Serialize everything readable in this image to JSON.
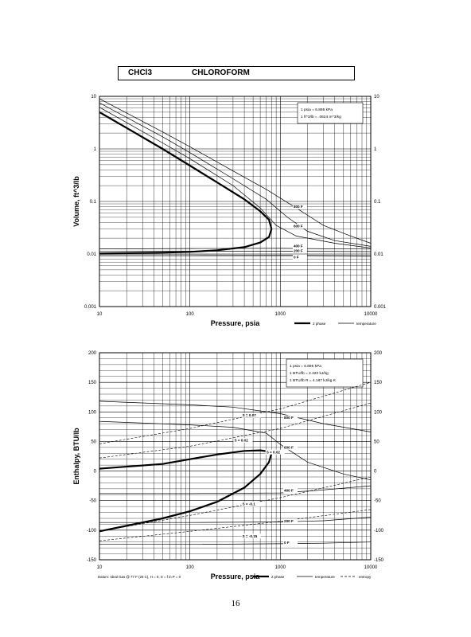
{
  "header": {
    "formula": "CHCl3",
    "name": "CHLOROFORM"
  },
  "page_number": "16",
  "chart_data": [
    {
      "type": "line",
      "scale": "log-log",
      "xlabel": "Pressure, psia",
      "ylabel": "Volume, ft^3/lb",
      "xlim": [
        10,
        10000
      ],
      "ylim": [
        0.001,
        10
      ],
      "x_ticks": [
        "10",
        "100",
        "1000",
        "10000"
      ],
      "y_ticks_left": [
        "0.001",
        "0.01",
        "0.1",
        "1",
        "10"
      ],
      "y_ticks_right": [
        "0.001",
        "0.01",
        "0.1",
        "1",
        "10"
      ],
      "grid": true,
      "legend": [
        "2 phase",
        "temperature"
      ],
      "notes": [
        "1 psia = 6.895 kPa",
        "1 ft^3/lb = .0624 m^3/kg"
      ],
      "isotherm_labels": [
        {
          "text": "800 F",
          "x": 1400,
          "y": 0.075
        },
        {
          "text": "600 F",
          "x": 1400,
          "y": 0.032
        },
        {
          "text": "400 F",
          "x": 1400,
          "y": 0.0135
        },
        {
          "text": "200 F",
          "x": 1400,
          "y": 0.011
        },
        {
          "text": "0 F",
          "x": 1400,
          "y": 0.0083
        }
      ],
      "series": [
        {
          "role": "saturated liquid",
          "x": [
            10,
            50,
            100,
            200,
            400,
            600,
            750,
            800
          ],
          "y": [
            0.0102,
            0.0106,
            0.011,
            0.0118,
            0.0135,
            0.0165,
            0.021,
            0.03
          ]
        },
        {
          "role": "saturated vapor",
          "x": [
            10,
            20,
            50,
            100,
            200,
            400,
            600,
            750,
            800
          ],
          "y": [
            5.0,
            2.5,
            1.0,
            0.48,
            0.23,
            0.11,
            0.065,
            0.045,
            0.03
          ]
        },
        {
          "role": "isotherm",
          "x": [
            10,
            50,
            100,
            300,
            700,
            1500,
            3000,
            6000,
            10000
          ],
          "y": [
            9.0,
            2.1,
            1.1,
            0.38,
            0.17,
            0.075,
            0.035,
            0.022,
            0.016
          ]
        },
        {
          "role": "isotherm",
          "x": [
            10,
            50,
            100,
            300,
            700,
            1200,
            2000,
            4000,
            10000
          ],
          "y": [
            7.5,
            1.7,
            0.85,
            0.27,
            0.11,
            0.05,
            0.027,
            0.018,
            0.014
          ]
        },
        {
          "role": "isotherm",
          "x": [
            10,
            50,
            100,
            300,
            600,
            900,
            1500,
            4000,
            10000
          ],
          "y": [
            6.2,
            1.3,
            0.65,
            0.2,
            0.075,
            0.035,
            0.022,
            0.016,
            0.013
          ]
        },
        {
          "role": "isotherm",
          "x": [
            10,
            100,
            1000,
            10000
          ],
          "y": [
            0.0125,
            0.0127,
            0.0128,
            0.0124
          ]
        },
        {
          "role": "isotherm",
          "x": [
            10,
            100,
            1000,
            10000
          ],
          "y": [
            0.0112,
            0.0113,
            0.0113,
            0.0111
          ]
        },
        {
          "role": "isotherm",
          "x": [
            10,
            100,
            1000,
            10000
          ],
          "y": [
            0.0096,
            0.0096,
            0.0095,
            0.0093
          ]
        }
      ]
    },
    {
      "type": "line",
      "scale": "semilog-x",
      "xlabel": "Pressure, psia",
      "ylabel": "Enthalpy, BTU/lb",
      "xlim": [
        10,
        10000
      ],
      "ylim": [
        -150,
        200
      ],
      "x_ticks": [
        "10",
        "100",
        "1000",
        "10000"
      ],
      "y_ticks_left": [
        "-150",
        "-100",
        "-50",
        "0",
        "50",
        "100",
        "150",
        "200"
      ],
      "y_ticks_right": [
        "-150",
        "-100",
        "-50",
        "0",
        "50",
        "100",
        "150",
        "200"
      ],
      "grid": true,
      "legend": [
        "2 phase",
        "temperature",
        "entropy"
      ],
      "notes": [
        "1 psia = 6.895 kPa",
        "1 BTU/lb = 2.320 kJ/kg",
        "1 BTU/lb R = 4.187 kJ/kg K"
      ],
      "footnote": "Datum: Ideal Gas @ 77 F (25 C), H = 0, S = f in P = 0",
      "isotherm_labels": [
        {
          "text": "800 F",
          "x": 1100,
          "y": 88
        },
        {
          "text": "600 F",
          "x": 1100,
          "y": 38
        },
        {
          "text": "400 F",
          "x": 1100,
          "y": -35
        },
        {
          "text": "200 F",
          "x": 1100,
          "y": -87
        },
        {
          "text": "0 F",
          "x": 1100,
          "y": -123
        }
      ],
      "entropy_labels": [
        {
          "text": "S = 0.07",
          "x": 380,
          "y": 92
        },
        {
          "text": "S = 0.02",
          "x": 310,
          "y": 50
        },
        {
          "text": "S = 0.02",
          "x": 700,
          "y": 30
        },
        {
          "text": "S = -0.1",
          "x": 380,
          "y": -58
        },
        {
          "text": "S = -0.15",
          "x": 380,
          "y": -112
        }
      ],
      "series": [
        {
          "role": "saturated liquid",
          "x": [
            10,
            50,
            100,
            200,
            400,
            600,
            750,
            800
          ],
          "y": [
            -102,
            -80,
            -68,
            -52,
            -28,
            -5,
            15,
            30
          ]
        },
        {
          "role": "saturated vapor",
          "x": [
            10,
            50,
            100,
            200,
            400,
            600,
            750,
            800
          ],
          "y": [
            4,
            12,
            20,
            28,
            34,
            35,
            33,
            30
          ]
        },
        {
          "role": "isotherm",
          "x": [
            10,
            100,
            300,
            1000,
            3000,
            10000
          ],
          "y": [
            118,
            112,
            108,
            97,
            80,
            66
          ]
        },
        {
          "role": "isotherm",
          "x": [
            10,
            100,
            300,
            700,
            1000,
            2000,
            5000,
            10000
          ],
          "y": [
            84,
            78,
            74,
            64,
            45,
            15,
            -5,
            -15
          ]
        },
        {
          "role": "isotherm",
          "x": [
            10,
            100,
            1000,
            3000,
            10000
          ],
          "y": [
            -38,
            -38,
            -37,
            -32,
            -25
          ]
        },
        {
          "role": "isotherm",
          "x": [
            10,
            100,
            1000,
            3000,
            10000
          ],
          "y": [
            -87,
            -87,
            -86,
            -84,
            -78
          ]
        },
        {
          "role": "isotherm",
          "x": [
            10,
            100,
            1000,
            3000,
            10000
          ],
          "y": [
            -124,
            -124,
            -123,
            -122,
            -120
          ]
        },
        {
          "role": "entropy",
          "x": [
            10,
            100,
            1000,
            10000
          ],
          "y": [
            46,
            72,
            105,
            150
          ]
        },
        {
          "role": "entropy",
          "x": [
            10,
            100,
            1000,
            10000
          ],
          "y": [
            22,
            42,
            72,
            115
          ]
        },
        {
          "role": "entropy",
          "x": [
            10,
            100,
            1000,
            10000
          ],
          "y": [
            -102,
            -75,
            -45,
            -10
          ]
        },
        {
          "role": "entropy",
          "x": [
            10,
            100,
            1000,
            10000
          ],
          "y": [
            -118,
            -102,
            -85,
            -65
          ]
        }
      ]
    }
  ]
}
